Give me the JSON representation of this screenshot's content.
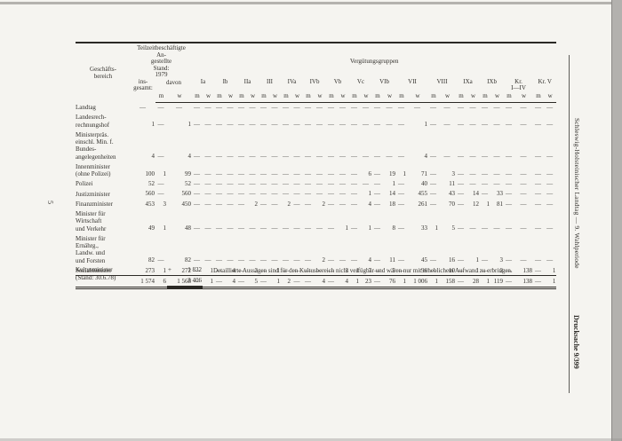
{
  "page": {
    "page_number": "5",
    "running_title": "Schleswig-Holsteinischer Landtag — 9. Wahlperiode",
    "doc_number": "Drucksache 9/399"
  },
  "table": {
    "header": {
      "geschaeftsbereich": "Geschäfts-\nbereich",
      "teilzeit_caption": "Teilzeitbeschäftigte\nAn-\ngestellte\nStand:\n1979",
      "insgesamt": "ins-\ngesamt:",
      "davon": "davon",
      "verguetungsgruppen": "Vergütungsgruppen",
      "m": "m",
      "w": "w",
      "groups": [
        "Ia",
        "Ib",
        "IIa",
        "III",
        "IVa",
        "IVb",
        "Vb",
        "Vc",
        "VIb",
        "VII",
        "VIII",
        "IXa",
        "IXb",
        "Kr.\nI—IV",
        "Kr. V"
      ]
    },
    "rows": [
      {
        "label": "Landtag",
        "cells": [
          "—",
          "—",
          "—",
          "—",
          "—",
          "—",
          "—",
          "—",
          "—",
          "—",
          "—",
          "—",
          "—",
          "—",
          "—",
          "—",
          "—",
          "—",
          "—",
          "—",
          "—",
          "—",
          "—",
          "—",
          "—",
          "—",
          "—",
          "—",
          "—",
          "—",
          "—",
          "—",
          "—"
        ]
      },
      {
        "label": "Landesrech-\nrechnungshof",
        "cells": [
          "1",
          "—",
          "1",
          "—",
          "—",
          "—",
          "—",
          "—",
          "—",
          "—",
          "—",
          "—",
          "—",
          "—",
          "—",
          "—",
          "—",
          "—",
          "—",
          "—",
          "—",
          "—",
          "1",
          "—",
          "—",
          "—",
          "—",
          "—",
          "—",
          "—",
          "—",
          "—",
          "—"
        ]
      },
      {
        "label": "Ministerpräs.\neinschl. Min. f.\nBundes-\nangelegenheiten",
        "cells": [
          "4",
          "—",
          "4",
          "—",
          "—",
          "—",
          "—",
          "—",
          "—",
          "—",
          "—",
          "—",
          "—",
          "—",
          "—",
          "—",
          "—",
          "—",
          "—",
          "—",
          "—",
          "—",
          "4",
          "—",
          "—",
          "—",
          "—",
          "—",
          "—",
          "—",
          "—",
          "—",
          "—"
        ]
      },
      {
        "label": "Innenminister\n(ohne Polizei)",
        "cells": [
          "100",
          "1",
          "99",
          "—",
          "—",
          "—",
          "—",
          "—",
          "—",
          "—",
          "—",
          "—",
          "—",
          "—",
          "—",
          "—",
          "—",
          "—",
          "6",
          "—",
          "19",
          "1",
          "71",
          "—",
          "3",
          "—",
          "—",
          "—",
          "—",
          "—",
          "—",
          "—",
          "—"
        ]
      },
      {
        "label": "Polizei",
        "cells": [
          "52",
          "—",
          "52",
          "—",
          "—",
          "—",
          "—",
          "—",
          "—",
          "—",
          "—",
          "—",
          "—",
          "—",
          "—",
          "—",
          "—",
          "—",
          "—",
          "—",
          "1",
          "—",
          "40",
          "—",
          "11",
          "—",
          "—",
          "—",
          "—",
          "—",
          "—",
          "—",
          "—"
        ]
      },
      {
        "label": "Justizminister",
        "cells": [
          "560",
          "—",
          "560",
          "—",
          "—",
          "—",
          "—",
          "—",
          "—",
          "—",
          "—",
          "—",
          "—",
          "—",
          "—",
          "—",
          "—",
          "—",
          "1",
          "—",
          "14",
          "—",
          "455",
          "—",
          "43",
          "—",
          "14",
          "—",
          "33",
          "—",
          "—",
          "—",
          "—"
        ]
      },
      {
        "label": "Finanzminister",
        "cells": [
          "453",
          "3",
          "450",
          "—",
          "—",
          "—",
          "—",
          "—",
          "2",
          "—",
          "—",
          "2",
          "—",
          "—",
          "2",
          "—",
          "—",
          "—",
          "4",
          "—",
          "18",
          "—",
          "261",
          "—",
          "70",
          "—",
          "12",
          "1",
          "81",
          "—",
          "—",
          "—",
          "—"
        ]
      },
      {
        "label": "Minister für\nWirtschaft\nund Verkehr",
        "cells": [
          "49",
          "1",
          "48",
          "—",
          "—",
          "—",
          "—",
          "—",
          "—",
          "—",
          "—",
          "—",
          "—",
          "—",
          "—",
          "—",
          "1",
          "—",
          "1",
          "—",
          "8",
          "—",
          "33",
          "1",
          "5",
          "—",
          "—",
          "—",
          "—",
          "—",
          "—",
          "—",
          "—"
        ]
      },
      {
        "label": "Minister für\nErnährg.,\nLandw. und\nund Forsten",
        "cells": [
          "82",
          "—",
          "82",
          "—",
          "—",
          "—",
          "—",
          "—",
          "—",
          "—",
          "—",
          "—",
          "—",
          "—",
          "2",
          "—",
          "—",
          "—",
          "4",
          "—",
          "11",
          "—",
          "45",
          "—",
          "16",
          "—",
          "1",
          "—",
          "3",
          "—",
          "—",
          "—",
          "—"
        ]
      },
      {
        "label": "Sozialminister",
        "cells": [
          "273",
          "1",
          "272",
          "—",
          "1",
          "—",
          "4",
          "—",
          "3",
          "—",
          "1",
          "—",
          "—",
          "—",
          "—",
          "—",
          "3",
          "1",
          "7",
          "—",
          "5",
          "—",
          "96",
          "—",
          "10",
          "—",
          "1",
          "—",
          "2",
          "—",
          "138",
          "—",
          "1"
        ]
      }
    ],
    "total_row": {
      "cells": [
        "1 574",
        "6",
        "1 568",
        "—",
        "1",
        "—",
        "4",
        "—",
        "5",
        "—",
        "1",
        "2",
        "—",
        "—",
        "4",
        "—",
        "4",
        "1",
        "23",
        "—",
        "76",
        "1",
        "1 006",
        "1",
        "158",
        "—",
        "28",
        "1",
        "119",
        "—",
        "138",
        "—",
        "1"
      ]
    }
  },
  "footer": {
    "kultusminister_label": "Kultusminister\n(Stand: 30.6.78)",
    "kultusminister_plus": "+",
    "kultusminister_value": "1 832",
    "kultusminister_sum": "3 406",
    "note": "Detaillierte Aussagen sind für den Kultusbereich nicht verfügbar und wären nur mit erheblichem Aufwand zu erbringen."
  }
}
